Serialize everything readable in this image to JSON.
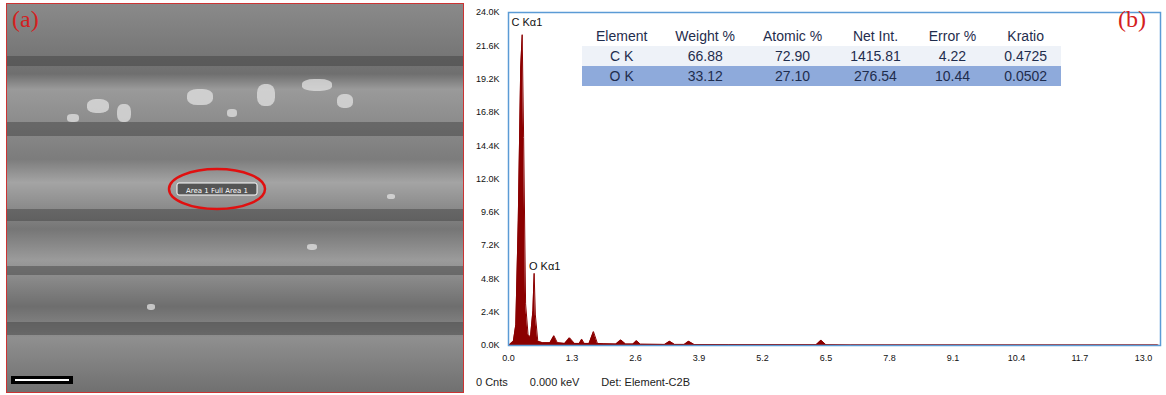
{
  "chart_data": {
    "type": "area",
    "color": "#8b0000",
    "panel_label": "(b)",
    "x": [
      0.0,
      0.1,
      0.15,
      0.2,
      0.25,
      0.28,
      0.31,
      0.35,
      0.4,
      0.45,
      0.5,
      0.525,
      0.55,
      0.6,
      0.7,
      0.85,
      0.93,
      1.0,
      1.15,
      1.25,
      1.35,
      1.45,
      1.5,
      1.55,
      1.65,
      1.74,
      1.82,
      1.95,
      2.2,
      2.3,
      2.4,
      2.55,
      2.62,
      2.7,
      3.2,
      3.3,
      3.4,
      3.6,
      3.69,
      3.8,
      4.5,
      6.3,
      6.4,
      6.5,
      7.0,
      13.3
    ],
    "values": [
      0,
      300,
      1500,
      9000,
      20000,
      22400,
      15000,
      3000,
      800,
      600,
      2500,
      5200,
      2200,
      300,
      200,
      200,
      700,
      200,
      150,
      550,
      150,
      150,
      450,
      150,
      150,
      1000,
      150,
      120,
      100,
      400,
      100,
      100,
      350,
      90,
      80,
      300,
      80,
      80,
      300,
      70,
      60,
      50,
      380,
      50,
      40,
      30
    ],
    "xlim": [
      0,
      13.35
    ],
    "xticks": [
      {
        "value": 0,
        "label": "0.0"
      },
      1.3,
      2.6,
      3.9,
      5.2,
      6.5,
      7.8,
      9.1,
      10.4,
      11.7,
      {
        "value": 13,
        "label": "13.0"
      }
    ],
    "ylim": [
      0,
      24000
    ],
    "yticks": [
      {
        "value": 0,
        "label": "0.0K"
      },
      {
        "value": 2400,
        "label": "2.4K"
      },
      {
        "value": 4800,
        "label": "4.8K"
      },
      {
        "value": 7200,
        "label": "7.2K"
      },
      {
        "value": 9600,
        "label": "9.6K"
      },
      {
        "value": 12000,
        "label": "12.0K"
      },
      {
        "value": 14400,
        "label": "14.4K"
      },
      {
        "value": 16800,
        "label": "16.8K"
      },
      {
        "value": 19200,
        "label": "19.2K"
      },
      {
        "value": 21600,
        "label": "21.6K"
      },
      {
        "value": 24000,
        "label": "24.0K"
      }
    ],
    "grid": false,
    "annotations": [
      {
        "text": "C Kα1",
        "x": 0.06,
        "y": 23300
      },
      {
        "text": "O Kα1",
        "x": 0.42,
        "y": 5700
      }
    ],
    "table": {
      "columns": [
        "Element",
        "Weight %",
        "Atomic %",
        "Net Int.",
        "Error %",
        "Kratio"
      ],
      "rows": [
        [
          "C K",
          "66.88",
          "72.90",
          "1415.81",
          "4.22",
          "0.4725"
        ],
        [
          "O K",
          "33.12",
          "27.10",
          "276.54",
          "10.44",
          "0.0502"
        ]
      ]
    },
    "footer": [
      "0 Cnts",
      "0.000 keV",
      "Det: Element-C2B"
    ]
  },
  "image_panel": {
    "panel_label": "(a)",
    "area_label": "Area 1 Full Area 1"
  }
}
